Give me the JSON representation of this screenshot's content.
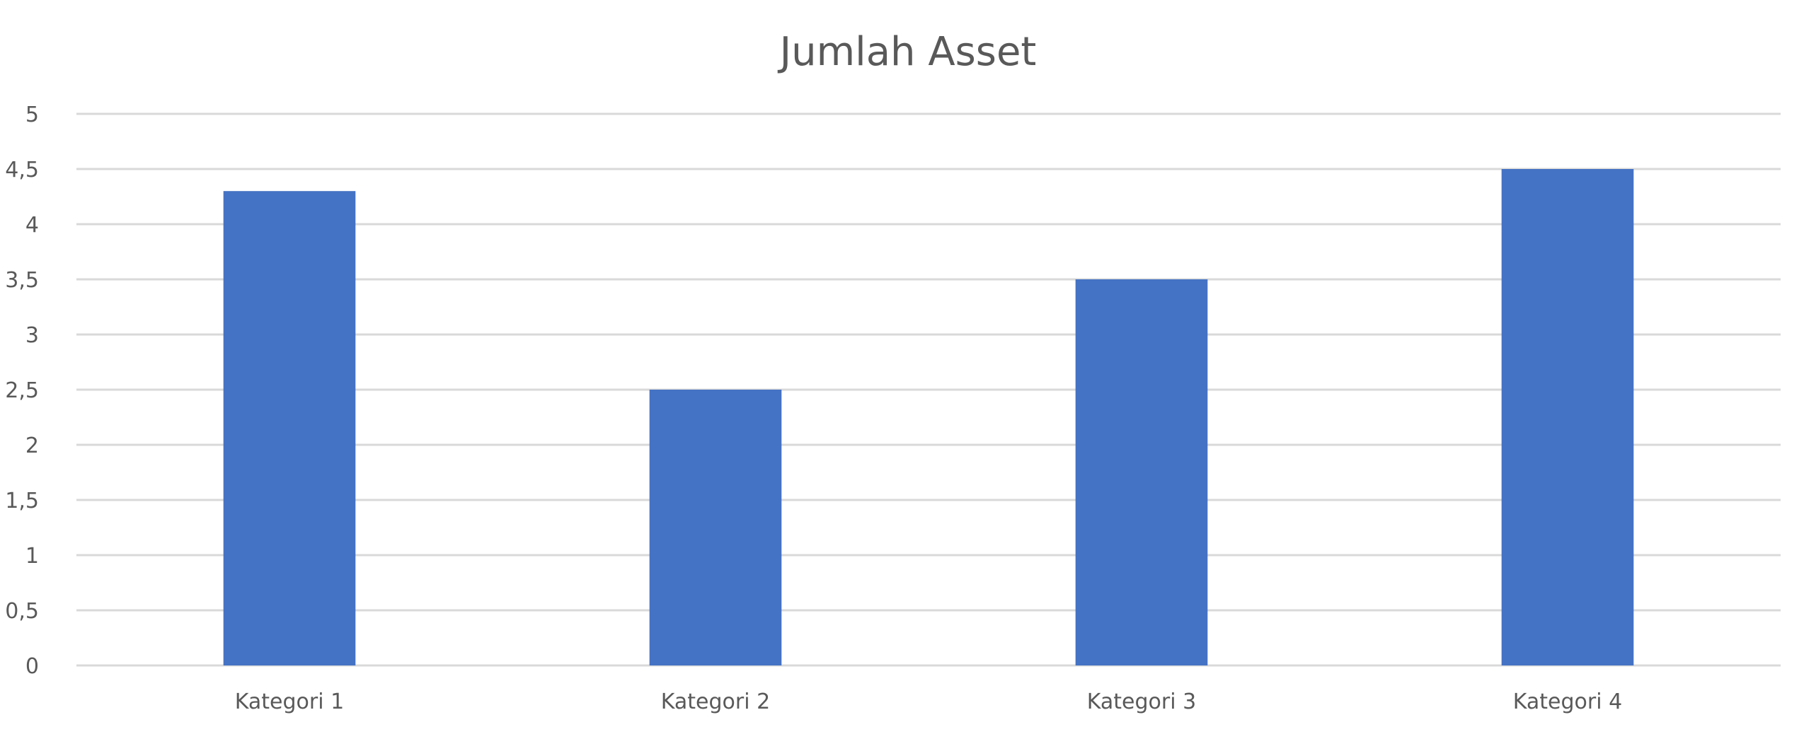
{
  "chart_data": {
    "type": "bar",
    "title": "Jumlah Asset",
    "categories": [
      "Kategori 1",
      "Kategori 2",
      "Kategori 3",
      "Kategori 4"
    ],
    "series": [
      {
        "values": [
          4.3,
          2.5,
          3.5,
          4.5
        ],
        "color": "#4472c4"
      }
    ],
    "ylim": [
      0,
      5
    ],
    "yticks": [
      0,
      0.5,
      1,
      1.5,
      2,
      2.5,
      3,
      3.5,
      4,
      4.5,
      5
    ],
    "ytick_labels": [
      "0",
      "0,5",
      "1",
      "1,5",
      "2",
      "2,5",
      "3",
      "3,5",
      "4",
      "4,5",
      "5"
    ],
    "grid": true,
    "legend": "none",
    "gridline_color": "#d9d9d9",
    "text_color": "#595959"
  }
}
